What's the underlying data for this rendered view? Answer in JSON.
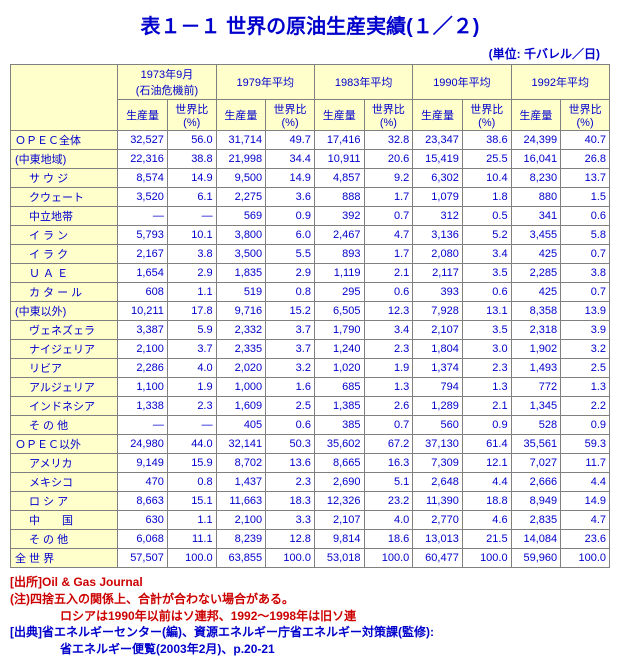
{
  "title": "表１－１ 世界の原油生産実績(１／２)",
  "unit": "(単位: 千バレル／日)",
  "periods": [
    {
      "label1": "1973年9月",
      "label2": "(石油危機前)"
    },
    {
      "label1": "1979年平均",
      "label2": ""
    },
    {
      "label1": "1983年平均",
      "label2": ""
    },
    {
      "label1": "1990年平均",
      "label2": ""
    },
    {
      "label1": "1992年平均",
      "label2": ""
    }
  ],
  "subheaders": [
    "生産量",
    "世界比(%)"
  ],
  "rows": [
    {
      "label": "ＯＰＥＣ全体",
      "indent": 0,
      "vals": [
        "32,527",
        "56.0",
        "31,714",
        "49.7",
        "17,416",
        "32.8",
        "23,347",
        "38.6",
        "24,399",
        "40.7"
      ]
    },
    {
      "label": "(中東地域)",
      "indent": 0,
      "vals": [
        "22,316",
        "38.8",
        "21,998",
        "34.4",
        "10,911",
        "20.6",
        "15,419",
        "25.5",
        "16,041",
        "26.8"
      ]
    },
    {
      "label": "サ ウ ジ",
      "indent": 2,
      "vals": [
        "8,574",
        "14.9",
        "9,500",
        "14.9",
        "4,857",
        "9.2",
        "6,302",
        "10.4",
        "8,230",
        "13.7"
      ]
    },
    {
      "label": "クウェート",
      "indent": 2,
      "vals": [
        "3,520",
        "6.1",
        "2,275",
        "3.6",
        "888",
        "1.7",
        "1,079",
        "1.8",
        "880",
        "1.5"
      ]
    },
    {
      "label": "中立地帯",
      "indent": 2,
      "vals": [
        "―",
        "―",
        "569",
        "0.9",
        "392",
        "0.7",
        "312",
        "0.5",
        "341",
        "0.6"
      ]
    },
    {
      "label": "イ ラ ン",
      "indent": 2,
      "vals": [
        "5,793",
        "10.1",
        "3,800",
        "6.0",
        "2,467",
        "4.7",
        "3,136",
        "5.2",
        "3,455",
        "5.8"
      ]
    },
    {
      "label": "イ ラ ク",
      "indent": 2,
      "vals": [
        "2,167",
        "3.8",
        "3,500",
        "5.5",
        "893",
        "1.7",
        "2,080",
        "3.4",
        "425",
        "0.7"
      ]
    },
    {
      "label": "Ｕ Ａ Ｅ",
      "indent": 2,
      "vals": [
        "1,654",
        "2.9",
        "1,835",
        "2.9",
        "1,119",
        "2.1",
        "2,117",
        "3.5",
        "2,285",
        "3.8"
      ]
    },
    {
      "label": "カ タ ー ル",
      "indent": 2,
      "vals": [
        "608",
        "1.1",
        "519",
        "0.8",
        "295",
        "0.6",
        "393",
        "0.6",
        "425",
        "0.7"
      ]
    },
    {
      "label": "(中東以外)",
      "indent": 0,
      "vals": [
        "10,211",
        "17.8",
        "9,716",
        "15.2",
        "6,505",
        "12.3",
        "7,928",
        "13.1",
        "8,358",
        "13.9"
      ]
    },
    {
      "label": "ヴェネズェラ",
      "indent": 2,
      "vals": [
        "3,387",
        "5.9",
        "2,332",
        "3.7",
        "1,790",
        "3.4",
        "2,107",
        "3.5",
        "2,318",
        "3.9"
      ]
    },
    {
      "label": "ナイジェリア",
      "indent": 2,
      "vals": [
        "2,100",
        "3.7",
        "2,335",
        "3.7",
        "1,240",
        "2.3",
        "1,804",
        "3.0",
        "1,902",
        "3.2"
      ]
    },
    {
      "label": "リビア",
      "indent": 2,
      "vals": [
        "2,286",
        "4.0",
        "2,020",
        "3.2",
        "1,020",
        "1.9",
        "1,374",
        "2.3",
        "1,493",
        "2.5"
      ]
    },
    {
      "label": "アルジェリア",
      "indent": 2,
      "vals": [
        "1,100",
        "1.9",
        "1,000",
        "1.6",
        "685",
        "1.3",
        "794",
        "1.3",
        "772",
        "1.3"
      ]
    },
    {
      "label": "インドネシア",
      "indent": 2,
      "vals": [
        "1,338",
        "2.3",
        "1,609",
        "2.5",
        "1,385",
        "2.6",
        "1,289",
        "2.1",
        "1,345",
        "2.2"
      ]
    },
    {
      "label": "そ の 他",
      "indent": 2,
      "vals": [
        "―",
        "―",
        "405",
        "0.6",
        "385",
        "0.7",
        "560",
        "0.9",
        "528",
        "0.9"
      ]
    },
    {
      "label": "ＯＰＥＣ以外",
      "indent": 0,
      "vals": [
        "24,980",
        "44.0",
        "32,141",
        "50.3",
        "35,602",
        "67.2",
        "37,130",
        "61.4",
        "35,561",
        "59.3"
      ]
    },
    {
      "label": "アメリカ",
      "indent": 2,
      "vals": [
        "9,149",
        "15.9",
        "8,702",
        "13.6",
        "8,665",
        "16.3",
        "7,309",
        "12.1",
        "7,027",
        "11.7"
      ]
    },
    {
      "label": "メキシコ",
      "indent": 2,
      "vals": [
        "470",
        "0.8",
        "1,437",
        "2.3",
        "2,690",
        "5.1",
        "2,648",
        "4.4",
        "2,666",
        "4.4"
      ]
    },
    {
      "label": "ロ シ ア",
      "indent": 2,
      "vals": [
        "8,663",
        "15.1",
        "11,663",
        "18.3",
        "12,326",
        "23.2",
        "11,390",
        "18.8",
        "8,949",
        "14.9"
      ]
    },
    {
      "label": "中　　国",
      "indent": 2,
      "vals": [
        "630",
        "1.1",
        "2,100",
        "3.3",
        "2,107",
        "4.0",
        "2,770",
        "4.6",
        "2,835",
        "4.7"
      ]
    },
    {
      "label": "そ の 他",
      "indent": 2,
      "vals": [
        "6,068",
        "11.1",
        "8,239",
        "12.8",
        "9,814",
        "18.6",
        "13,013",
        "21.5",
        "14,084",
        "23.6"
      ]
    },
    {
      "label": "全 世 界",
      "indent": 0,
      "vals": [
        "57,507",
        "100.0",
        "63,855",
        "100.0",
        "53,018",
        "100.0",
        "60,477",
        "100.0",
        "59,960",
        "100.0"
      ]
    }
  ],
  "footer": {
    "l1": "[出所]Oil & Gas Journal",
    "l2": "(注)四捨五入の関係上、合計が合わない場合がある。",
    "l3": "ロシアは1990年以前はソ連邦、1992～1998年は旧ソ連",
    "l4": "[出典]省エネルギーセンター(編)、資源エネルギー庁省エネルギー対策課(監修):",
    "l5": "省エネルギー便覧(2003年2月)、p.20-21"
  }
}
